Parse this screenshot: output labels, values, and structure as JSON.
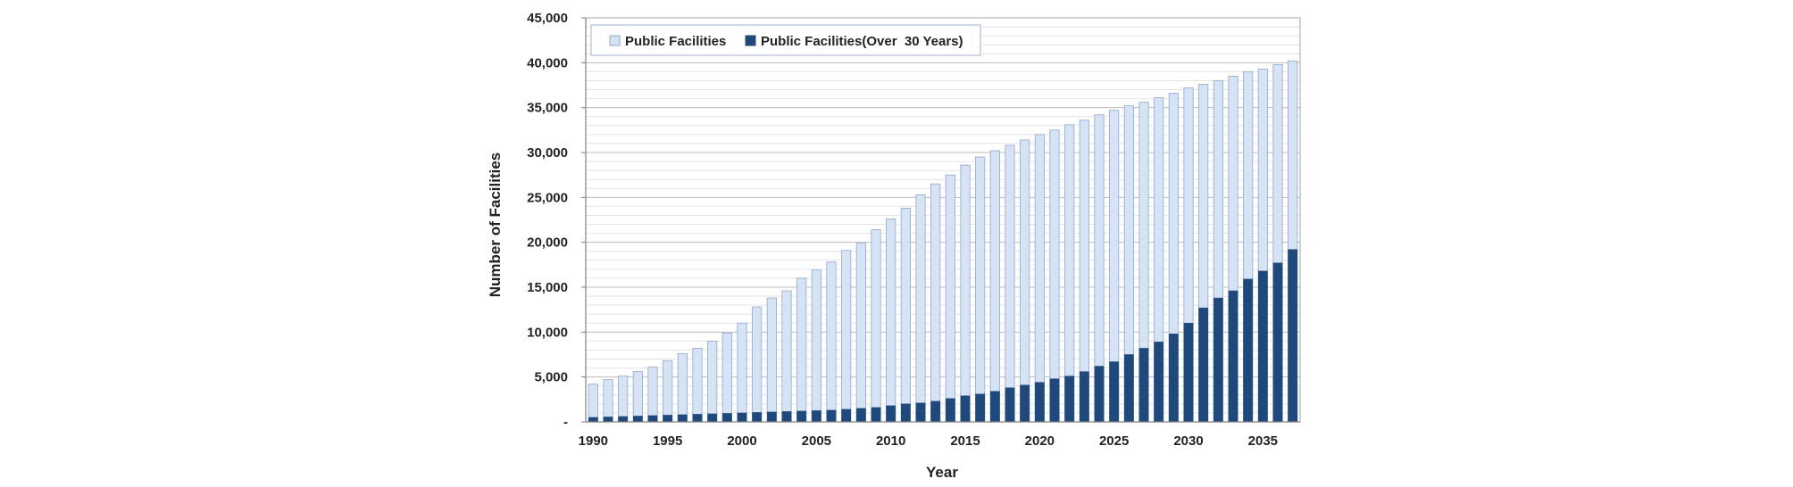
{
  "chart_data": {
    "type": "bar",
    "stacking": "overlay",
    "xlabel": "Year",
    "ylabel": "Number of Facilities",
    "ylim": [
      0,
      45000
    ],
    "y_ticks": [
      0,
      5000,
      10000,
      15000,
      20000,
      25000,
      30000,
      35000,
      40000,
      45000
    ],
    "y_tick_labels": [
      "-",
      "5,000",
      "10,000",
      "15,000",
      "20,000",
      "25,000",
      "30,000",
      "35,000",
      "40,000",
      "45,000"
    ],
    "x_tick_labels": [
      "1990",
      "1995",
      "2000",
      "2005",
      "2010",
      "2015",
      "2020",
      "2025",
      "2030",
      "2035"
    ],
    "minor_gridlines": true,
    "legend_position": "top-left",
    "categories": [
      1990,
      1991,
      1992,
      1993,
      1994,
      1995,
      1996,
      1997,
      1998,
      1999,
      2000,
      2001,
      2002,
      2003,
      2004,
      2005,
      2006,
      2007,
      2008,
      2009,
      2010,
      2011,
      2012,
      2013,
      2014,
      2015,
      2016,
      2017,
      2018,
      2019,
      2020,
      2021,
      2022,
      2023,
      2024,
      2025,
      2026,
      2027,
      2028,
      2029,
      2030,
      2031,
      2032,
      2033,
      2034,
      2035,
      2036,
      2037
    ],
    "series": [
      {
        "name": "Public Facilities",
        "color": "#d6e3f5",
        "values": [
          4200,
          4700,
          5100,
          5600,
          6100,
          6800,
          7600,
          8200,
          9000,
          9900,
          11000,
          12800,
          13800,
          14600,
          16000,
          16900,
          17800,
          19100,
          19900,
          21400,
          22600,
          23800,
          25300,
          26500,
          27500,
          28600,
          29500,
          30200,
          30800,
          31400,
          32000,
          32500,
          33100,
          33600,
          34200,
          34700,
          35200,
          35600,
          36100,
          36600,
          37200,
          37600,
          38000,
          38500,
          39000,
          39300,
          39800,
          40200
        ],
        "legend_label": "Public Facilities"
      },
      {
        "name": "Public Facilities(Over  30 Years)",
        "color": "#1f497d",
        "values": [
          500,
          550,
          600,
          650,
          700,
          750,
          800,
          850,
          900,
          950,
          1000,
          1050,
          1100,
          1150,
          1200,
          1250,
          1300,
          1400,
          1500,
          1600,
          1800,
          2000,
          2100,
          2300,
          2600,
          2900,
          3100,
          3400,
          3800,
          4100,
          4400,
          4800,
          5100,
          5600,
          6200,
          6700,
          7500,
          8200,
          8900,
          9800,
          11000,
          12700,
          13800,
          14600,
          15900,
          16800,
          17700,
          19200
        ],
        "legend_label": "Public Facilities(Over  30 Years)"
      }
    ]
  }
}
